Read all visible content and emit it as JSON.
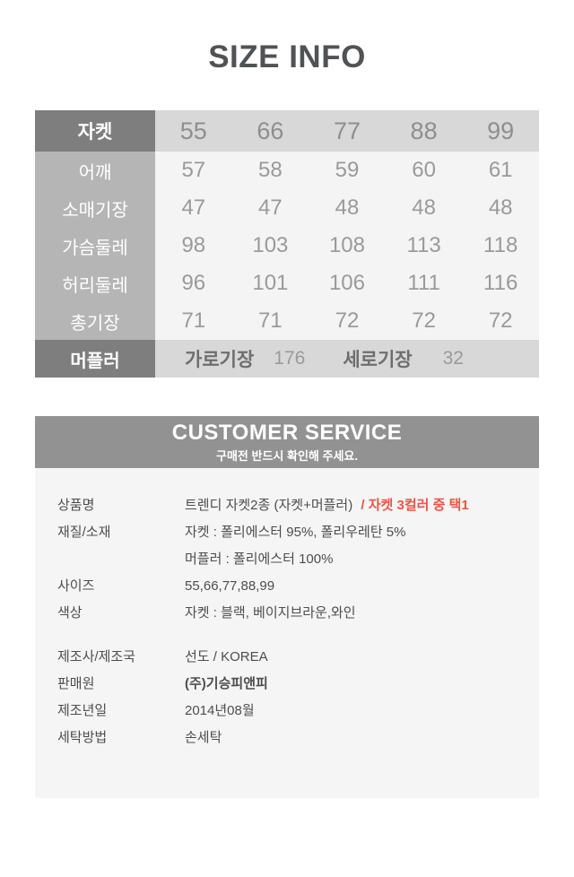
{
  "page": {
    "title": "SIZE INFO"
  },
  "size_table": {
    "header": {
      "label": "자켓",
      "columns": [
        "55",
        "66",
        "77",
        "88",
        "99"
      ]
    },
    "rows": [
      {
        "label": "어깨",
        "values": [
          "57",
          "58",
          "59",
          "60",
          "61"
        ]
      },
      {
        "label": "소매기장",
        "values": [
          "47",
          "47",
          "48",
          "48",
          "48"
        ]
      },
      {
        "label": "가슴둘레",
        "values": [
          "98",
          "103",
          "108",
          "113",
          "118"
        ]
      },
      {
        "label": "허리둘레",
        "values": [
          "96",
          "101",
          "106",
          "111",
          "116"
        ]
      },
      {
        "label": "총기장",
        "values": [
          "71",
          "71",
          "72",
          "72",
          "72"
        ]
      }
    ],
    "muffler": {
      "label": "머플러",
      "width_name": "가로기장",
      "width_value": "176",
      "height_name": "세로기장",
      "height_value": "32"
    }
  },
  "customer_service": {
    "banner_title": "CUSTOMER SERVICE",
    "banner_subtitle": "구매전 반드시 확인해 주세요.",
    "product_name": {
      "label": "상품명",
      "value": "트렌디 자켓2종 (자켓+머플러)",
      "highlight": "/ 자켓 3컬러 중 택1"
    },
    "material": {
      "label": "재질/소재",
      "line1": "자켓 : 폴리에스터 95%, 폴리우레탄 5%",
      "line2": "머플러 : 폴리에스터 100%"
    },
    "size": {
      "label": "사이즈",
      "value": "55,66,77,88,99"
    },
    "color": {
      "label": "색상",
      "value": "자켓 : 블랙, 베이지브라운,와인"
    },
    "manufacturer": {
      "label": "제조사/제조국",
      "value": "선도 / KOREA"
    },
    "seller": {
      "label": "판매원",
      "value": "(주)기승피앤피"
    },
    "manufacture_date": {
      "label": "제조년일",
      "value": "2014년08월"
    },
    "washing": {
      "label": "세탁방법",
      "value": "손세탁"
    }
  },
  "colors": {
    "accent_red": "#ee5247",
    "table_dark_gray": "#7e7e7e",
    "table_mid_gray": "#b5b5b5",
    "table_light_gray": "#d8d8d8",
    "table_body_bg": "#f4f4f4",
    "banner_gray": "#929292",
    "panel_bg": "#f5f5f5"
  }
}
